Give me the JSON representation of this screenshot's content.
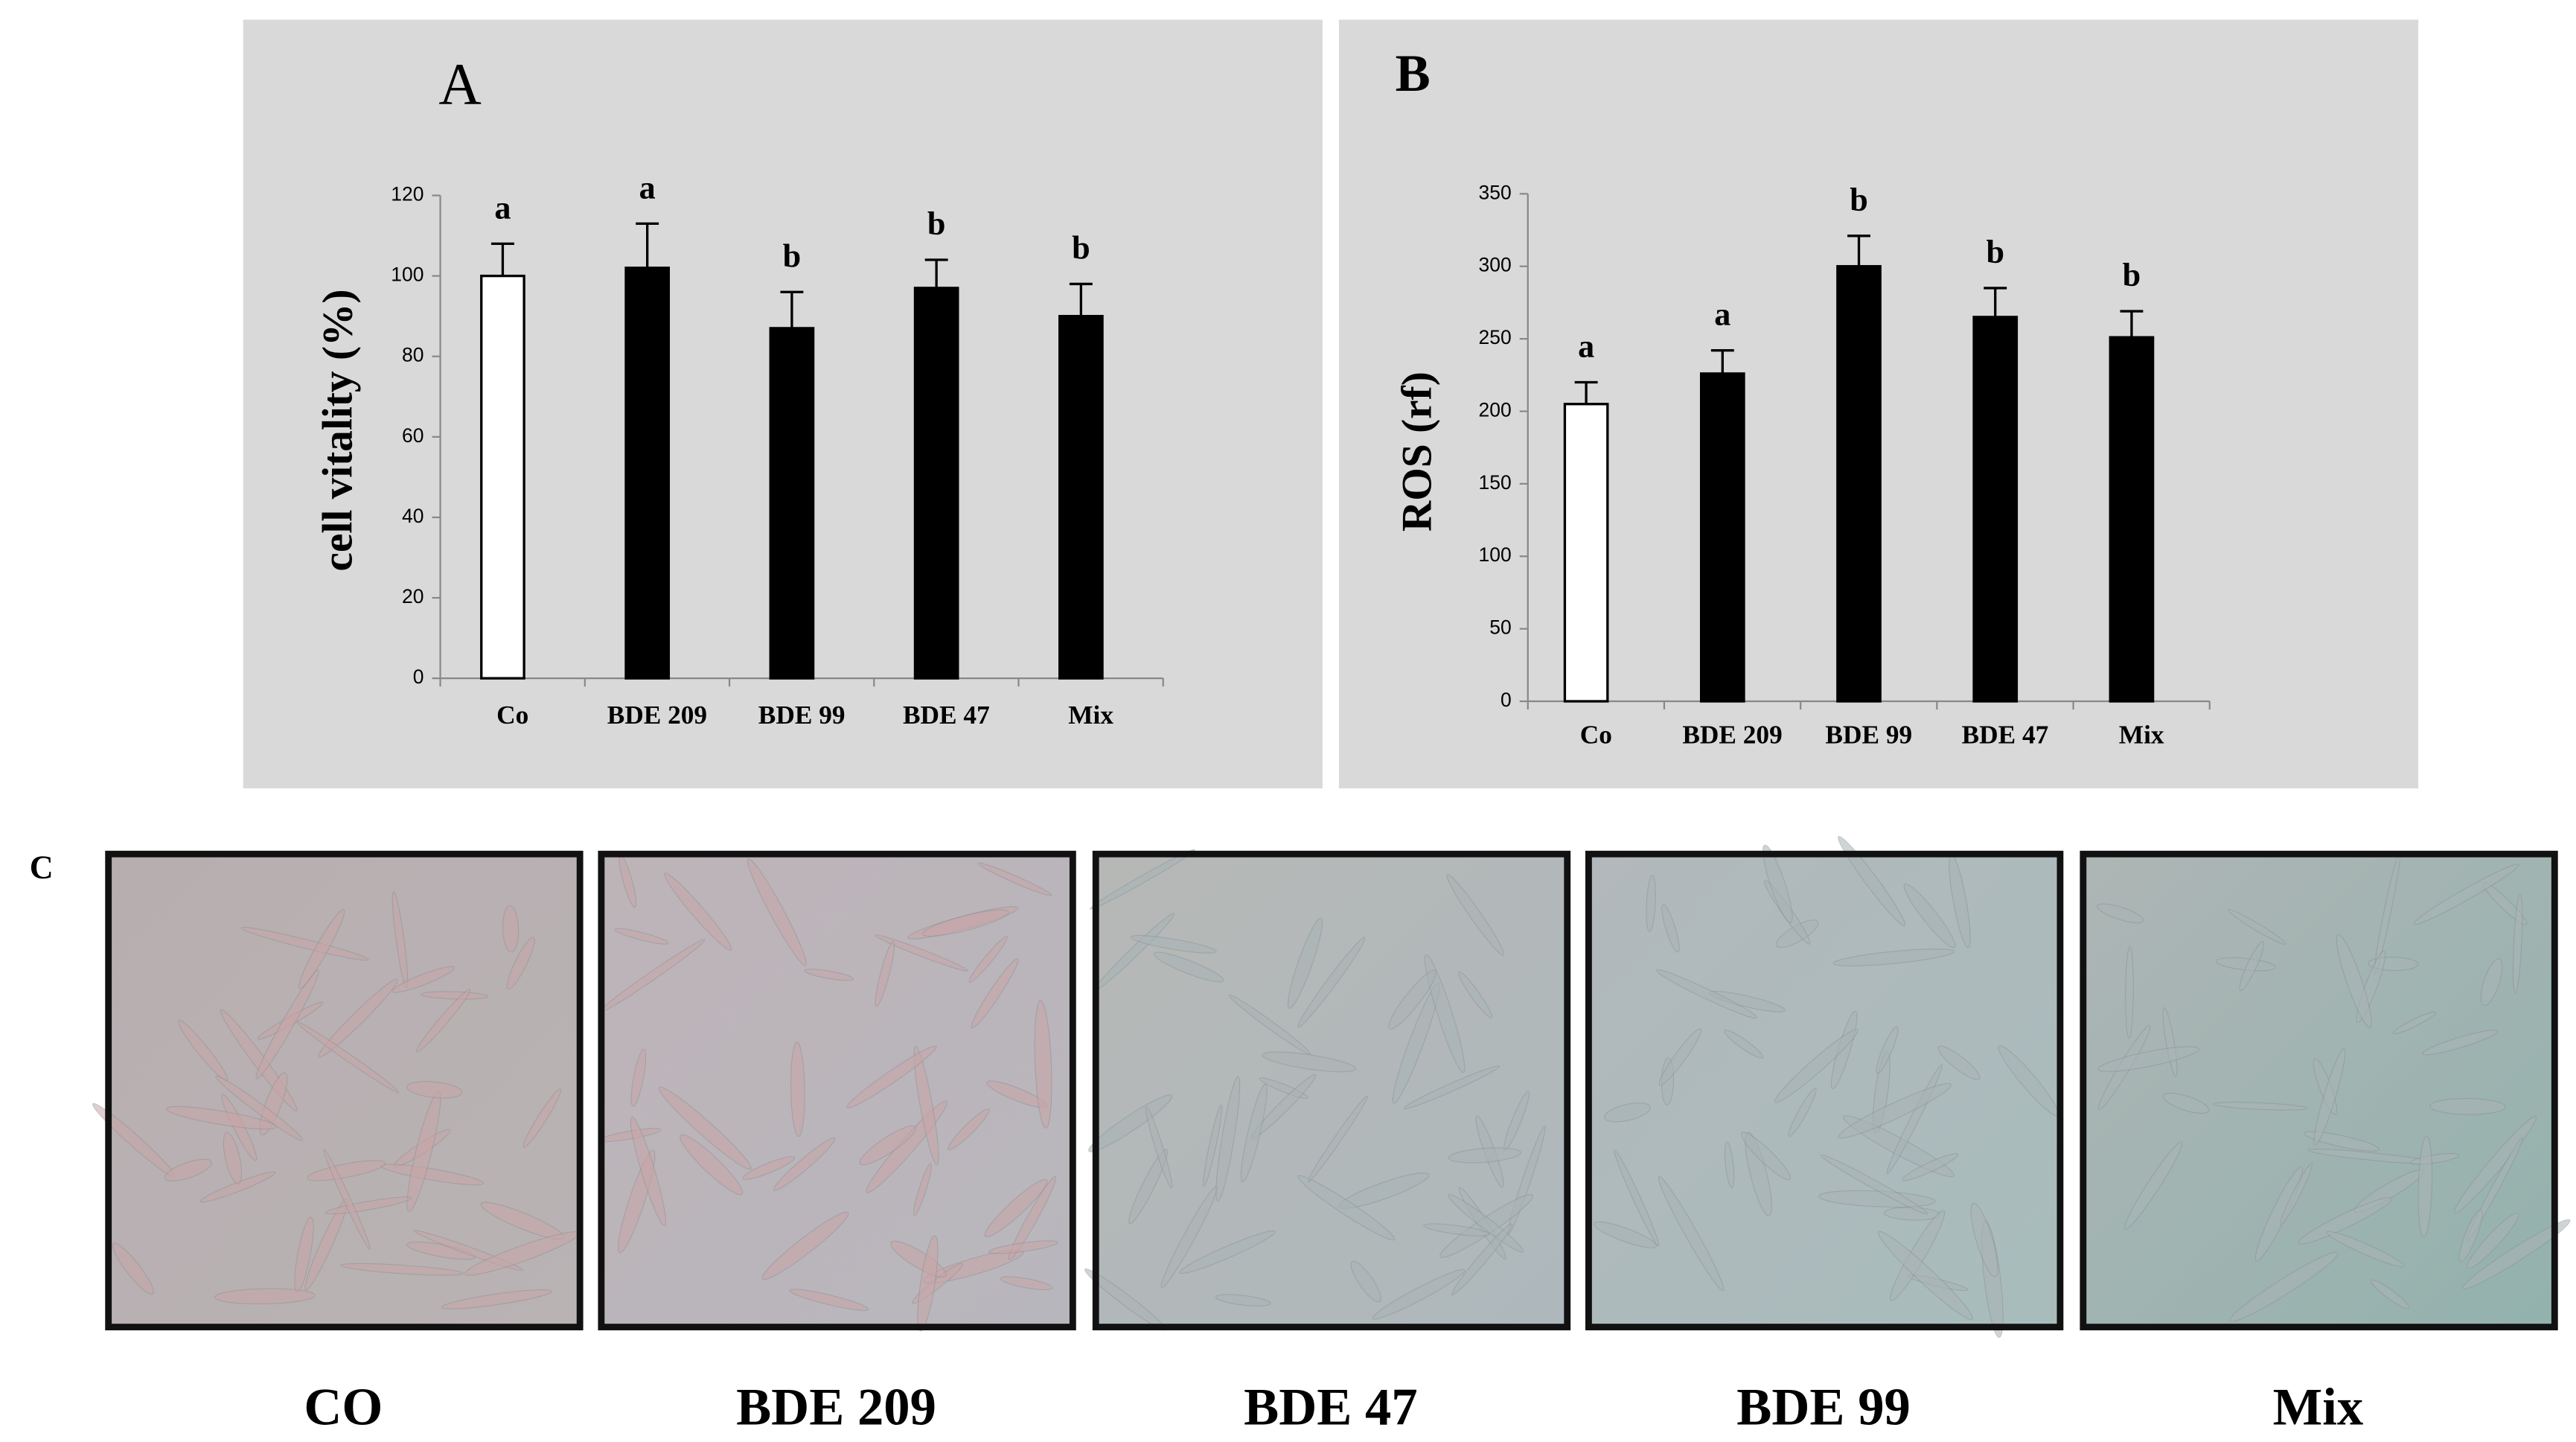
{
  "chart_data": [
    {
      "type": "bar",
      "title": "A",
      "y_label": "cell vitality (%)",
      "categories": [
        "Co",
        "BDE  209",
        "BDE  99",
        "BDE  47",
        "Mix"
      ],
      "values": [
        100,
        102,
        87,
        97,
        90
      ],
      "errors": [
        8,
        11,
        9,
        7,
        8
      ],
      "annotations": [
        "a",
        "a",
        "b",
        "b",
        "b"
      ],
      "colors": [
        "#ffffff",
        "#000000",
        "#000000",
        "#000000",
        "#000000"
      ],
      "ylim": [
        0,
        120
      ],
      "yticks": [
        0,
        20,
        40,
        60,
        80,
        100,
        120
      ]
    },
    {
      "type": "bar",
      "title": "B",
      "y_label": "ROS (rf)",
      "categories": [
        "Co",
        "BDE  209",
        "BDE  99",
        "BDE  47",
        "Mix"
      ],
      "values": [
        205,
        226,
        300,
        265,
        251
      ],
      "errors": [
        15,
        16,
        21,
        20,
        18
      ],
      "annotations": [
        "a",
        "a",
        "b",
        "b",
        "b"
      ],
      "colors": [
        "#ffffff",
        "#000000",
        "#000000",
        "#000000",
        "#000000"
      ],
      "ylim": [
        0,
        350
      ],
      "yticks": [
        0,
        50,
        100,
        150,
        200,
        250,
        300,
        350
      ]
    }
  ],
  "panel_c": {
    "label": "C",
    "images": [
      "CO",
      "BDE 209",
      "BDE 47",
      "BDE 99",
      "Mix"
    ]
  }
}
